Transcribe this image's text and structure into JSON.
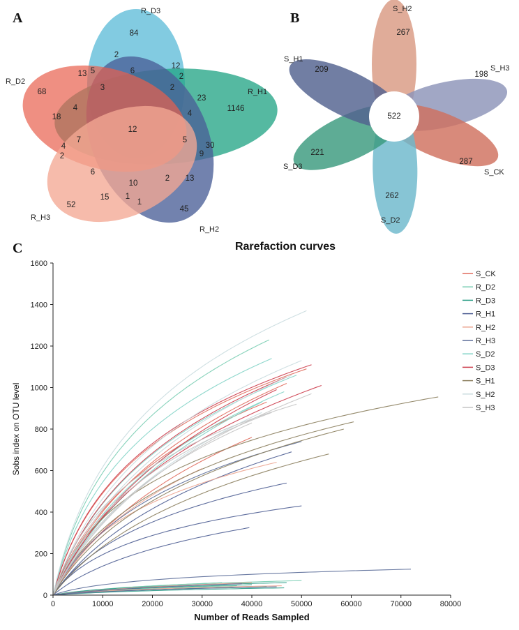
{
  "chart_data": [
    {
      "panel": "A",
      "type": "venn",
      "sets": [
        {
          "name": "R_D3",
          "color": "#5fbcd8",
          "unique": 84
        },
        {
          "name": "R_H1",
          "color": "#25a587",
          "unique": 1146
        },
        {
          "name": "R_H2",
          "color": "#4a5f97",
          "unique": 45
        },
        {
          "name": "R_H3",
          "color": "#f3a893",
          "unique": 52
        },
        {
          "name": "R_D2",
          "color": "#e8604d",
          "unique": 68
        }
      ],
      "region_values": [
        2,
        6,
        3,
        13,
        5,
        12,
        2,
        2,
        23,
        4,
        18,
        4,
        12,
        5,
        7,
        4,
        2,
        30,
        9,
        6,
        13,
        2,
        10,
        15,
        1,
        1
      ],
      "core": 12
    },
    {
      "panel": "B",
      "type": "flower",
      "core": 522,
      "petals": [
        {
          "name": "S_H2",
          "value": 267,
          "color": "#d99a82"
        },
        {
          "name": "S_H3",
          "value": 198,
          "color": "#8c94b8"
        },
        {
          "name": "S_CK",
          "value": 287,
          "color": "#d0705e"
        },
        {
          "name": "S_D2",
          "value": 262,
          "color": "#6db8cc"
        },
        {
          "name": "S_D3",
          "value": 221,
          "color": "#3a9a7e"
        },
        {
          "name": "S_H1",
          "value": 209,
          "color": "#52628f"
        }
      ]
    },
    {
      "panel": "C",
      "type": "line",
      "title": "Rarefaction curves",
      "xlabel": "Number of Reads Sampled",
      "ylabel": "Sobs index on OTU level",
      "xlim": [
        0,
        80000
      ],
      "ylim": [
        0,
        1600
      ],
      "xticks": [
        0,
        10000,
        20000,
        30000,
        40000,
        50000,
        60000,
        70000,
        80000
      ],
      "yticks": [
        0,
        200,
        400,
        600,
        800,
        1000,
        1200,
        1400,
        1600
      ],
      "legend_position": "top-right",
      "series": [
        {
          "name": "S_CK",
          "color": "#e06a5c",
          "curves": [
            [
              51000,
              1090
            ],
            [
              43000,
              930
            ],
            [
              47000,
              1020
            ],
            [
              40000,
              760
            ]
          ]
        },
        {
          "name": "R_D2",
          "color": "#79cdb3",
          "curves": [
            [
              43500,
              1230
            ],
            [
              50000,
              70
            ],
            [
              34000,
              60
            ],
            [
              37000,
              45
            ]
          ]
        },
        {
          "name": "R_D3",
          "color": "#2f9f88",
          "curves": [
            [
              47000,
              60
            ],
            [
              40000,
              50
            ],
            [
              43000,
              40
            ],
            [
              46500,
              35
            ]
          ]
        },
        {
          "name": "R_H1",
          "color": "#4d5d92",
          "curves": [
            [
              50000,
              430
            ],
            [
              47000,
              540
            ],
            [
              39500,
              325
            ],
            [
              48000,
              690
            ]
          ]
        },
        {
          "name": "R_H2",
          "color": "#eca38e",
          "curves": [
            [
              45000,
              640
            ],
            [
              46000,
              45
            ],
            [
              30000,
              610
            ],
            [
              40000,
              60
            ]
          ]
        },
        {
          "name": "R_H3",
          "color": "#5a6c98",
          "curves": [
            [
              72000,
              125
            ],
            [
              50000,
              740
            ],
            [
              45000,
              40
            ],
            [
              38000,
              55
            ]
          ]
        },
        {
          "name": "S_D2",
          "color": "#82d3c7",
          "curves": [
            [
              44000,
              1140
            ],
            [
              49000,
              1060
            ],
            [
              46500,
              980
            ],
            [
              42000,
              930
            ]
          ]
        },
        {
          "name": "S_D3",
          "color": "#cc3b4a",
          "curves": [
            [
              52000,
              1110
            ],
            [
              47000,
              1050
            ],
            [
              54000,
              1010
            ],
            [
              45000,
              990
            ]
          ]
        },
        {
          "name": "S_H1",
          "color": "#8a7d5c",
          "curves": [
            [
              77500,
              955
            ],
            [
              60500,
              835
            ],
            [
              58500,
              800
            ],
            [
              55500,
              680
            ]
          ]
        },
        {
          "name": "S_H2",
          "color": "#c9dcdf",
          "curves": [
            [
              51000,
              1370
            ],
            [
              50000,
              1130
            ],
            [
              48000,
              1060
            ],
            [
              42000,
              880
            ]
          ]
        },
        {
          "name": "S_H3",
          "color": "#c4c4c4",
          "curves": [
            [
              49000,
              920
            ],
            [
              44000,
              880
            ],
            [
              40000,
              830
            ],
            [
              52000,
              970
            ]
          ]
        }
      ]
    }
  ]
}
